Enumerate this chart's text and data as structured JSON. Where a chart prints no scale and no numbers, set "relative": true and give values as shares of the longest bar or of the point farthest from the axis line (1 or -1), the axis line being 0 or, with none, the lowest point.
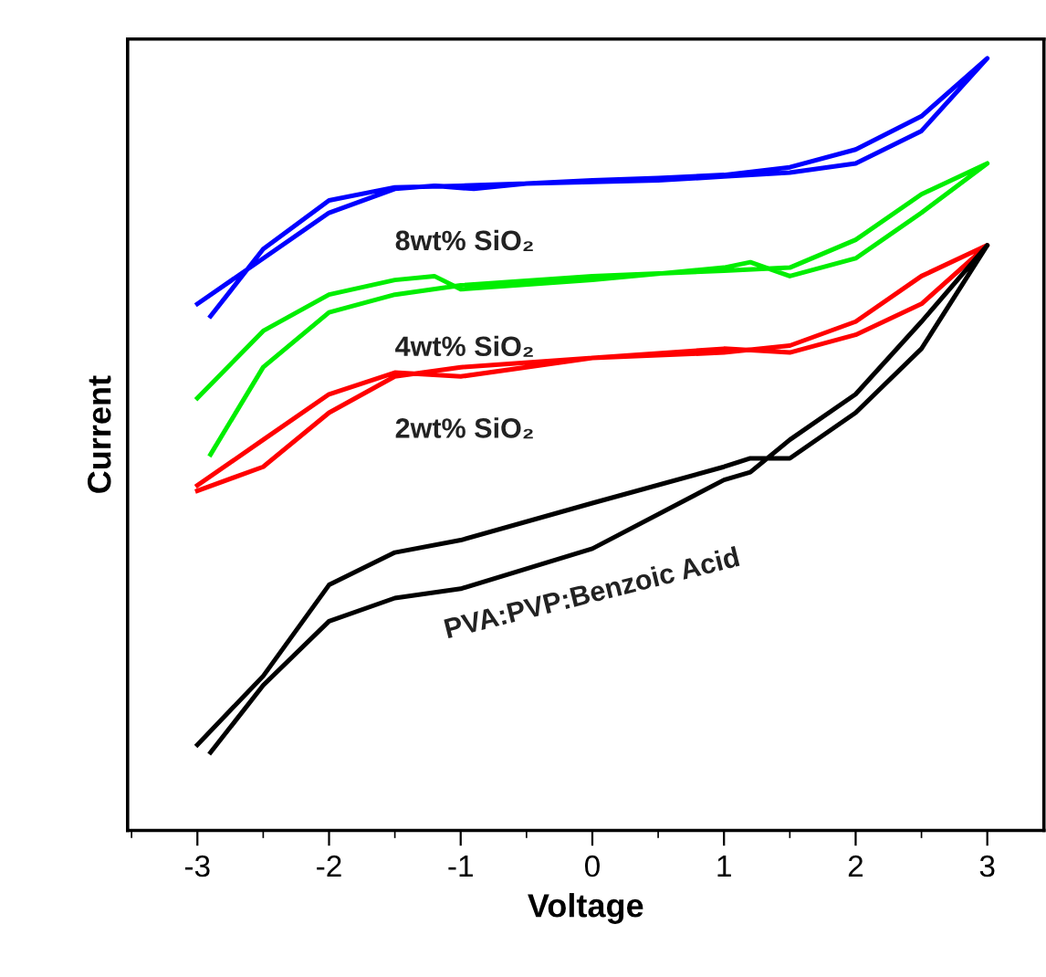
{
  "chart_data": {
    "type": "line",
    "relative": true,
    "xlabel": "Voltage",
    "ylabel": "Current",
    "xlim": [
      -3.53,
      3.43
    ],
    "xticks": [
      -3,
      -2,
      -1,
      0,
      1,
      2,
      3
    ],
    "legend": false,
    "grid": false,
    "marker": "none",
    "line_style": "solid",
    "series": [
      {
        "name": "8wt% SiO₂",
        "color": "#0000ff",
        "x": [
          -2.9,
          -2.5,
          -2,
          -1.5,
          -1,
          -0.5,
          0,
          0.5,
          1,
          1.5,
          2,
          2.5,
          3,
          2.5,
          2,
          1.5,
          1,
          0.5,
          0,
          -0.5,
          -0.9,
          -1.2,
          -1.5,
          -2,
          -2.5,
          -3
        ],
        "values": [
          0.666,
          0.753,
          0.816,
          0.833,
          0.835,
          0.838,
          0.842,
          0.845,
          0.849,
          0.859,
          0.882,
          0.925,
          1,
          0.906,
          0.864,
          0.852,
          0.847,
          0.842,
          0.84,
          0.838,
          0.831,
          0.835,
          0.831,
          0.8,
          0.741,
          0.682
        ]
      },
      {
        "name": "4wt% SiO₂",
        "color": "#00ee00",
        "x": [
          -3,
          -2.5,
          -2,
          -1.5,
          -1.2,
          -1,
          0,
          1,
          1.2,
          1.5,
          2,
          2.5,
          3,
          2.5,
          2,
          1.5,
          1,
          0,
          -1,
          -1.5,
          -2,
          -2.5,
          -2.9
        ],
        "values": [
          0.56,
          0.647,
          0.694,
          0.713,
          0.718,
          0.701,
          0.713,
          0.729,
          0.736,
          0.718,
          0.741,
          0.8,
          0.864,
          0.824,
          0.765,
          0.729,
          0.725,
          0.718,
          0.706,
          0.694,
          0.671,
          0.6,
          0.487
        ]
      },
      {
        "name": "2wt% SiO₂",
        "color": "#ff0000",
        "x": [
          -3,
          -2.5,
          -2,
          -1.5,
          -1,
          0,
          1,
          1.5,
          2,
          2.5,
          3,
          2.5,
          2,
          1.5,
          1,
          0,
          -1,
          -1.5,
          -2,
          -2.5,
          -3
        ],
        "values": [
          0.447,
          0.506,
          0.565,
          0.593,
          0.588,
          0.612,
          0.624,
          0.619,
          0.642,
          0.682,
          0.758,
          0.718,
          0.659,
          0.628,
          0.619,
          0.612,
          0.6,
          0.588,
          0.541,
          0.471,
          0.44
        ]
      },
      {
        "name": "PVA:PVP:Benzoic Acid",
        "color": "#000000",
        "x": [
          -3,
          -2.5,
          -2,
          -1.5,
          -1,
          0,
          1,
          1.2,
          1.5,
          2,
          2.5,
          3,
          2.5,
          2,
          1.5,
          1.2,
          1,
          0,
          -1,
          -1.5,
          -2,
          -2.5,
          -2.9
        ],
        "values": [
          0.111,
          0.2,
          0.318,
          0.36,
          0.376,
          0.424,
          0.471,
          0.482,
          0.482,
          0.541,
          0.624,
          0.758,
          0.659,
          0.565,
          0.506,
          0.464,
          0.454,
          0.365,
          0.313,
          0.301,
          0.271,
          0.188,
          0.101
        ]
      }
    ]
  }
}
